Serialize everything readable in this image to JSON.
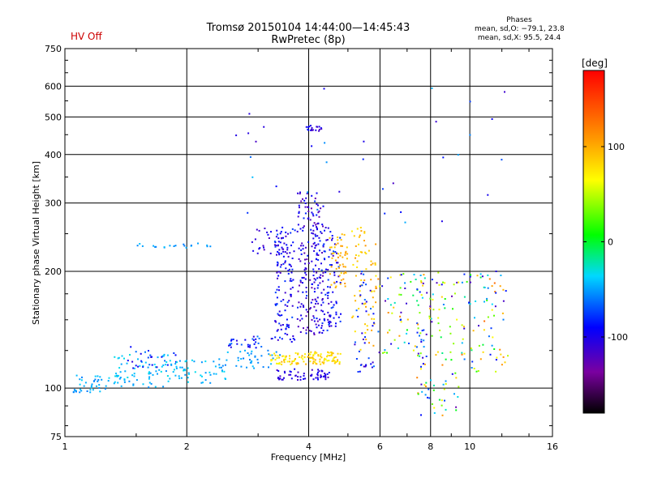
{
  "header": {
    "hv_status": "HV Off",
    "title_line1": "Tromsø 20150104 14:44:00—14:45:43",
    "title_line2": "RwPretec (8p)",
    "stats_title": "Phases",
    "stats_o": "mean, sd,O: −79.1, 23.8",
    "stats_x": "mean, sd,X: 95.5, 24.4"
  },
  "colorbar": {
    "unit_label": "[deg]",
    "range": [
      -180,
      180
    ],
    "ticks": [
      100,
      0,
      -100
    ]
  },
  "chart_data": {
    "type": "scatter",
    "title": "Tromsø 20150104 14:44:00—14:45:43",
    "subtitle": "RwPretec (8p)",
    "xlabel": "Frequency [MHz]",
    "ylabel": "Stationary phase Virtual Height [km]",
    "xscale": "log",
    "yscale": "log",
    "xlim": [
      1,
      16
    ],
    "ylim": [
      75,
      750
    ],
    "grid": true,
    "xticks": [
      1,
      2,
      4,
      6,
      8,
      10,
      16
    ],
    "yticks": [
      75,
      100,
      200,
      300,
      400,
      500,
      600,
      750
    ],
    "gridlines_x": [
      2,
      4,
      6,
      8,
      10
    ],
    "gridlines_y": [
      100,
      200,
      300,
      400,
      500,
      600
    ],
    "colorscale_deg": [
      -180,
      180
    ],
    "clusters": [
      {
        "f": [
          1.05,
          1.3
        ],
        "h": [
          97,
          108
        ],
        "p": [
          -60,
          -35
        ],
        "n": 40
      },
      {
        "f": [
          1.3,
          1.8
        ],
        "h": [
          100,
          122
        ],
        "p": [
          -55,
          -30
        ],
        "n": 70
      },
      {
        "f": [
          1.4,
          1.9
        ],
        "h": [
          112,
          128
        ],
        "p": [
          -110,
          -60
        ],
        "n": 25
      },
      {
        "f": [
          1.8,
          2.5
        ],
        "h": [
          103,
          118
        ],
        "p": [
          -55,
          -30
        ],
        "n": 55
      },
      {
        "f": [
          2.4,
          3.4
        ],
        "h": [
          112,
          125
        ],
        "p": [
          -60,
          -40
        ],
        "n": 40
      },
      {
        "f": [
          2.5,
          3.3
        ],
        "h": [
          127,
          136
        ],
        "p": [
          -110,
          -60
        ],
        "n": 30
      },
      {
        "f": [
          3.2,
          4.8
        ],
        "h": [
          115,
          124
        ],
        "p": [
          60,
          100
        ],
        "n": 120
      },
      {
        "f": [
          3.3,
          4.5
        ],
        "h": [
          105,
          112
        ],
        "p": [
          -120,
          -90
        ],
        "n": 60
      },
      {
        "f": [
          3.3,
          3.7
        ],
        "h": [
          130,
          260
        ],
        "p": [
          -120,
          -70
        ],
        "n": 120
      },
      {
        "f": [
          3.75,
          4.35
        ],
        "h": [
          135,
          320
        ],
        "p": [
          -130,
          -80
        ],
        "n": 200
      },
      {
        "f": [
          3.9,
          4.3
        ],
        "h": [
          460,
          475
        ],
        "p": [
          -120,
          -90
        ],
        "n": 18
      },
      {
        "f": [
          4.3,
          4.8
        ],
        "h": [
          140,
          260
        ],
        "p": [
          -120,
          -70
        ],
        "n": 90
      },
      {
        "f": [
          4.5,
          5.0
        ],
        "h": [
          180,
          255
        ],
        "p": [
          80,
          110
        ],
        "n": 50
      },
      {
        "f": [
          5.1,
          5.9
        ],
        "h": [
          125,
          260
        ],
        "p": [
          70,
          110
        ],
        "n": 70
      },
      {
        "f": [
          5.2,
          5.8
        ],
        "h": [
          110,
          200
        ],
        "p": [
          -120,
          -60
        ],
        "n": 40
      },
      {
        "f": [
          5.9,
          7.6
        ],
        "h": [
          120,
          200
        ],
        "p": [
          -130,
          120
        ],
        "n": 60
      },
      {
        "f": [
          7.4,
          9.4
        ],
        "h": [
          85,
          200
        ],
        "p": [
          -130,
          120
        ],
        "n": 110
      },
      {
        "f": [
          9.5,
          12.5
        ],
        "h": [
          110,
          200
        ],
        "p": [
          -120,
          130
        ],
        "n": 80
      },
      {
        "f": [
          1.5,
          2.3
        ],
        "h": [
          230,
          236
        ],
        "p": [
          -60,
          -40
        ],
        "n": 20
      },
      {
        "f": [
          2.9,
          3.6
        ],
        "h": [
          220,
          260
        ],
        "p": [
          -120,
          -90
        ],
        "n": 30
      },
      {
        "f": [
          2.5,
          12.5
        ],
        "h": [
          260,
          650
        ],
        "p": [
          -120,
          -40
        ],
        "n": 35
      }
    ]
  }
}
